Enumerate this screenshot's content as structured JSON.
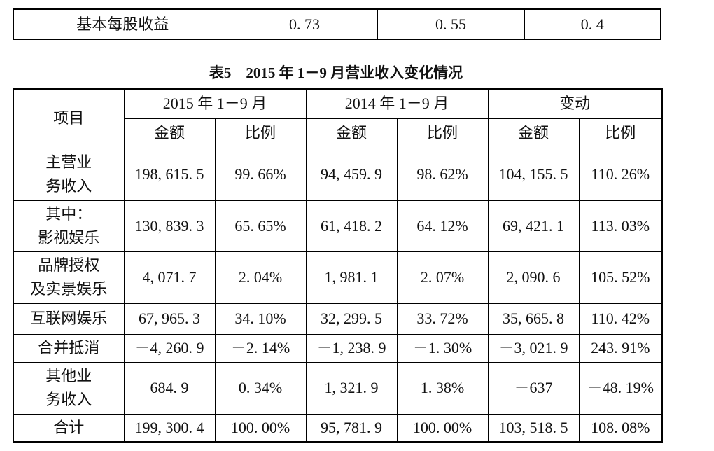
{
  "top_table": {
    "rows": [
      [
        "基本每股收益",
        "0. 73",
        "0. 55",
        "0. 4"
      ]
    ]
  },
  "caption": "表5　2015 年 1－9 月营业收入变化情况",
  "table": {
    "header": {
      "item": "项目",
      "groups": [
        "2015 年 1－9 月",
        "2014 年 1－9 月",
        "变动"
      ],
      "subheaders": [
        "金额",
        "比例",
        "金额",
        "比例",
        "金额",
        "比例"
      ]
    },
    "rows": [
      {
        "label": [
          "主营业",
          "务收入"
        ],
        "cells": [
          "198, 615. 5",
          "99. 66%",
          "94, 459. 9",
          "98. 62%",
          "104, 155. 5",
          "110. 26%"
        ]
      },
      {
        "label": [
          "其中：",
          "影视娱乐"
        ],
        "cells": [
          "130, 839. 3",
          "65. 65%",
          "61, 418. 2",
          "64. 12%",
          "69, 421. 1",
          "113. 03%"
        ]
      },
      {
        "label": [
          "品牌授权",
          "及实景娱乐"
        ],
        "cells": [
          "4, 071. 7",
          "2. 04%",
          "1, 981. 1",
          "2. 07%",
          "2, 090. 6",
          "105. 52%"
        ]
      },
      {
        "label": [
          "互联网娱乐"
        ],
        "cells": [
          "67, 965. 3",
          "34. 10%",
          "32, 299. 5",
          "33. 72%",
          "35, 665. 8",
          "110. 42%"
        ]
      },
      {
        "label": [
          "合并抵消"
        ],
        "cells": [
          "－4, 260. 9",
          "－2. 14%",
          "－1, 238. 9",
          "－1. 30%",
          "－3, 021. 9",
          "243. 91%"
        ]
      },
      {
        "label": [
          "其他业",
          "务收入"
        ],
        "cells": [
          "684. 9",
          "0. 34%",
          "1, 321. 9",
          "1. 38%",
          "－637",
          "－48. 19%"
        ]
      },
      {
        "label": [
          "合计"
        ],
        "cells": [
          "199, 300. 4",
          "100. 00%",
          "95, 781. 9",
          "100. 00%",
          "103, 518. 5",
          "108. 08%"
        ]
      }
    ]
  }
}
